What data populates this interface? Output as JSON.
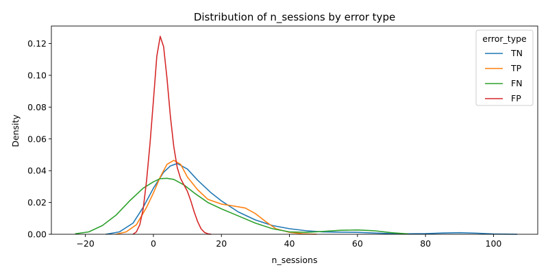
{
  "chart_data": {
    "type": "line",
    "title": "Distribution of n_sessions by error type",
    "xlabel": "n_sessions",
    "ylabel": "Density",
    "xlim": [
      -30,
      113
    ],
    "ylim": [
      0,
      0.131
    ],
    "xticks": [
      -20,
      0,
      20,
      40,
      60,
      80,
      100
    ],
    "yticks": [
      0.0,
      0.02,
      0.04,
      0.06,
      0.08,
      0.1,
      0.12
    ],
    "ytick_labels": [
      "0.00",
      "0.02",
      "0.04",
      "0.06",
      "0.08",
      "0.10",
      "0.12"
    ],
    "grid": false,
    "legend": {
      "title": "error_type",
      "placement": "top-right"
    },
    "series": [
      {
        "name": "TN",
        "color": "#1f77b4",
        "x": [
          -14,
          -10,
          -6,
          -3,
          0,
          3,
          5,
          7,
          10,
          13,
          17,
          20,
          25,
          30,
          35,
          40,
          45,
          50,
          55,
          60,
          65,
          70,
          75,
          80,
          85,
          90,
          95,
          100,
          107
        ],
        "y": [
          0.0,
          0.0015,
          0.007,
          0.017,
          0.029,
          0.039,
          0.043,
          0.0445,
          0.041,
          0.034,
          0.026,
          0.021,
          0.014,
          0.009,
          0.0055,
          0.0035,
          0.0022,
          0.0015,
          0.0013,
          0.0012,
          0.0008,
          0.0004,
          0.0003,
          0.0004,
          0.0008,
          0.001,
          0.0007,
          0.0002,
          0.0
        ]
      },
      {
        "name": "TP",
        "color": "#ff7f0e",
        "x": [
          -11,
          -8,
          -5,
          -2,
          0,
          2,
          4,
          6,
          8,
          10,
          13,
          16,
          20,
          23,
          27,
          30,
          33,
          36,
          40,
          44,
          48
        ],
        "y": [
          0.0,
          0.0015,
          0.006,
          0.017,
          0.026,
          0.036,
          0.044,
          0.0465,
          0.044,
          0.036,
          0.028,
          0.022,
          0.019,
          0.018,
          0.0165,
          0.013,
          0.008,
          0.0035,
          0.0012,
          0.0003,
          0.0
        ]
      },
      {
        "name": "FN",
        "color": "#2ca02c",
        "x": [
          -23,
          -19,
          -15,
          -11,
          -7,
          -3,
          0,
          2,
          4,
          6,
          9,
          12,
          16,
          20,
          25,
          30,
          35,
          40,
          45,
          50,
          55,
          60,
          65,
          70,
          75
        ],
        "y": [
          0.0003,
          0.0015,
          0.0055,
          0.012,
          0.021,
          0.029,
          0.033,
          0.035,
          0.0352,
          0.0345,
          0.031,
          0.026,
          0.02,
          0.016,
          0.0115,
          0.007,
          0.0035,
          0.0015,
          0.0012,
          0.0018,
          0.0025,
          0.0027,
          0.0022,
          0.001,
          0.0002
        ]
      },
      {
        "name": "FP",
        "color": "#d62728",
        "x": [
          -6,
          -5,
          -4,
          -3,
          -2,
          -1,
          0,
          1,
          2,
          3,
          4,
          5,
          6,
          7,
          8,
          9,
          10,
          11,
          12,
          13,
          14,
          15,
          16,
          17
        ],
        "y": [
          0.0,
          0.0015,
          0.006,
          0.016,
          0.034,
          0.057,
          0.084,
          0.112,
          0.1245,
          0.118,
          0.098,
          0.074,
          0.055,
          0.042,
          0.035,
          0.031,
          0.027,
          0.021,
          0.014,
          0.008,
          0.0035,
          0.0012,
          0.0003,
          0.0
        ]
      }
    ]
  }
}
